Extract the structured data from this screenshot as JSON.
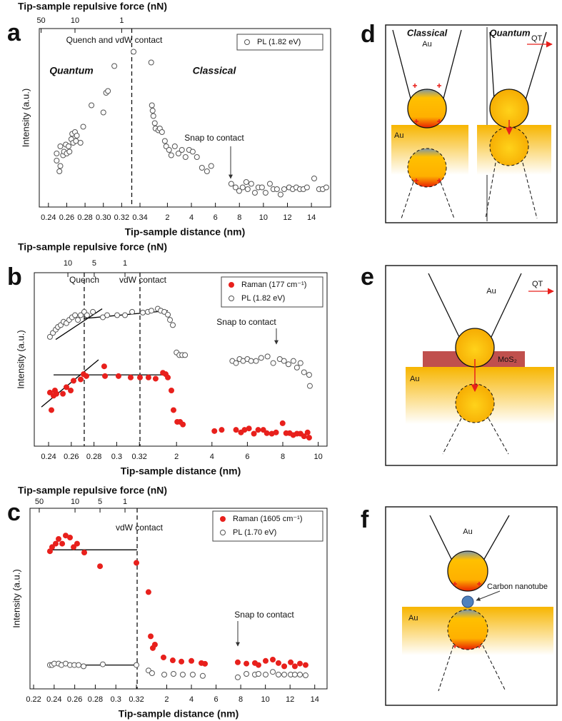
{
  "chart_data": [
    {
      "type": "scatter",
      "panel": "a",
      "top_axis_label": "Tip-sample repulsive force (nN)",
      "top_ticks": [
        50,
        10,
        1
      ],
      "top_tick_x": [
        0.232,
        0.269,
        0.32
      ],
      "xlabel": "Tip-sample distance (nm)",
      "ylabel": "Intensity (a.u.)",
      "xlim": [
        [
          0.23,
          0.347
        ],
        [
          0.25,
          15.6
        ]
      ],
      "xticks": [
        [
          0.24,
          0.26,
          0.28,
          {
            "value": 0.3,
            "label": "0.30"
          },
          0.32,
          0.34
        ],
        [
          2,
          4,
          6,
          8,
          10,
          12,
          14
        ]
      ],
      "ylim": [
        0,
        100
      ],
      "vlines": [
        0.331
      ],
      "annotations": [
        "Quench and vdW contact",
        "Quantum",
        "Classical",
        "Snap to contact"
      ],
      "series": [
        {
          "name": "PL (1.82 eV)",
          "marker": "open",
          "color": "#555555",
          "x": [
            0.249,
            0.249,
            0.252,
            0.253,
            0.253,
            0.256,
            0.257,
            0.259,
            0.26,
            0.262,
            0.263,
            0.265,
            0.266,
            0.267,
            0.269,
            0.27,
            0.271,
            0.275,
            0.278,
            0.287,
            0.3,
            0.303,
            0.305,
            0.312,
            0.333,
            0.65,
            0.71,
            0.77,
            0.83,
            0.95,
            1.01,
            1.25,
            1.37,
            1.55,
            1.79,
            1.9,
            2.14,
            2.32,
            2.62,
            2.92,
            3.21,
            3.51,
            3.81,
            4.11,
            4.46,
            4.88,
            5.3,
            5.65,
            7.32,
            7.68,
            7.98,
            8.27,
            8.57,
            8.69,
            8.99,
            9.29,
            9.58,
            9.88,
            10.18,
            10.54,
            10.83,
            11.13,
            11.43,
            11.73,
            12.14,
            12.44,
            12.74,
            13.04,
            13.33,
            13.63,
            14.23,
            14.64,
            14.94,
            15.24
          ],
          "values": [
            30,
            26,
            20,
            23,
            34,
            29,
            31,
            35,
            30,
            34,
            31,
            38,
            41,
            36,
            42,
            37,
            40,
            36,
            45,
            57,
            53,
            64,
            65,
            79,
            87,
            81,
            57,
            54,
            51,
            47,
            44,
            43,
            44,
            42,
            37,
            34,
            32,
            29,
            34,
            30,
            32,
            28,
            32,
            31,
            28,
            22,
            20,
            23,
            13,
            11,
            9,
            11,
            14,
            10,
            13,
            8,
            11,
            11,
            8,
            13,
            10,
            10,
            7,
            10,
            11,
            10,
            11,
            10,
            10,
            11,
            16,
            10,
            10,
            11
          ]
        }
      ]
    },
    {
      "type": "scatter",
      "panel": "b",
      "top_axis_label": "Tip-sample repulsive force (nN)",
      "top_ticks": [
        10,
        5,
        1
      ],
      "top_tick_x": [
        0.257,
        0.2802,
        0.3073
      ],
      "xlabel": "Tip-sample distance (nm)",
      "ylabel": "Intensity (a.u.)",
      "xlim": [
        [
          0.2274,
          0.3293
        ],
        [
          0.5,
          10.5
        ]
      ],
      "xticks": [
        [
          0.24,
          0.26,
          0.28,
          0.3,
          0.32
        ],
        [
          2,
          4,
          6,
          8,
          10
        ]
      ],
      "ylim": [
        0,
        100
      ],
      "vlines": [
        0.2714,
        0.3205
      ],
      "annotations": [
        "Quench",
        "vdW contact",
        "Snap to contact"
      ],
      "fit_color": "#000000",
      "fit_lines": [
        {
          "x": [
            0.2463,
            0.2872
          ],
          "values": [
            61.5,
            79.2
          ]
        },
        {
          "x": [
            0.2714,
            1.51
          ],
          "values": [
            73.6,
            78.1
          ]
        },
        {
          "x": [
            0.2337,
            0.284
          ],
          "values": [
            22.6,
            49.8
          ]
        },
        {
          "x": [
            0.2444,
            1.51
          ],
          "values": [
            41.1,
            41.1
          ]
        }
      ],
      "series": [
        {
          "name": "Raman (177 cm⁻¹)",
          "marker": "filled",
          "color": "#e8201c",
          "x": [
            0.2412,
            0.2425,
            0.2444,
            0.2456,
            0.2469,
            0.2526,
            0.2557,
            0.2595,
            0.262,
            0.2683,
            0.2708,
            0.2733,
            0.289,
            0.2897,
            0.3016,
            0.3123,
            0.3205,
            0.328,
            0.82,
            1.23,
            1.39,
            1.51,
            1.71,
            1.83,
            2.04,
            2.2,
            2.36,
            4.14,
            4.55,
            5.36,
            5.64,
            5.84,
            6.09,
            6.37,
            6.61,
            6.9,
            7.1,
            7.38,
            7.62,
            7.99,
            8.19,
            8.39,
            8.59,
            8.8,
            9.0,
            9.2,
            9.4,
            9.49
          ],
          "values": [
            30.9,
            20.8,
            29.1,
            32.1,
            30.2,
            30.2,
            34.0,
            32.1,
            37.7,
            38.5,
            41.5,
            40.4,
            46.0,
            40.4,
            40.4,
            39.6,
            39.6,
            39.6,
            38.9,
            42.3,
            41.5,
            39.6,
            32.1,
            20.8,
            14.0,
            14.0,
            12.5,
            8.7,
            9.4,
            9.4,
            7.9,
            9.4,
            10.2,
            7.2,
            9.4,
            9.4,
            7.5,
            7.2,
            7.9,
            13.2,
            7.5,
            7.5,
            6.4,
            7.2,
            7.2,
            5.7,
            7.9,
            4.9
          ]
        },
        {
          "name": "PL (1.82 eV)",
          "marker": "open",
          "color": "#555555",
          "x": [
            0.2412,
            0.2438,
            0.2463,
            0.2482,
            0.2507,
            0.2532,
            0.2557,
            0.2582,
            0.2607,
            0.2633,
            0.2658,
            0.2683,
            0.2714,
            0.2739,
            0.279,
            0.2878,
            0.2916,
            0.3004,
            0.3073,
            0.3136,
            0.323,
            0.3274,
            0.58,
            0.94,
            1.11,
            1.31,
            1.51,
            1.63,
            1.79,
            2.0,
            2.16,
            2.32,
            2.48,
            5.15,
            5.36,
            5.56,
            5.76,
            6.0,
            6.21,
            6.49,
            6.78,
            7.14,
            7.46,
            7.83,
            8.07,
            8.32,
            8.6,
            8.8,
            9.0,
            9.2,
            9.49,
            9.53
          ],
          "values": [
            63.0,
            65.3,
            67.2,
            68.7,
            69.8,
            71.7,
            70.9,
            72.8,
            74.3,
            75.5,
            72.8,
            75.5,
            77.4,
            75.5,
            77.4,
            74.3,
            75.5,
            75.5,
            75.5,
            77.4,
            77.0,
            77.4,
            78.1,
            79.2,
            78.1,
            77.4,
            75.8,
            72.8,
            69.8,
            54.0,
            52.5,
            52.5,
            52.5,
            49.1,
            47.9,
            50.2,
            49.1,
            50.2,
            49.1,
            49.1,
            50.9,
            51.7,
            47.9,
            50.2,
            49.1,
            47.2,
            49.1,
            45.3,
            47.9,
            42.6,
            41.1,
            34.7
          ]
        }
      ]
    },
    {
      "type": "scatter",
      "panel": "c",
      "top_axis_label": "Tip-sample repulsive force (nN)",
      "top_ticks": [
        50,
        10,
        5,
        1
      ],
      "top_tick_x": [
        0.2255,
        0.2603,
        0.2846,
        0.3089
      ],
      "xlabel": "Tip-sample distance (nm)",
      "ylabel": "Intensity (a.u.)",
      "xlim": [
        [
          0.2165,
          0.3297
        ],
        [
          0.35,
          15
        ]
      ],
      "xticks": [
        [
          0.22,
          0.24,
          0.26,
          0.28,
          0.3,
          0.32
        ],
        [
          2,
          4,
          6,
          8,
          10,
          12,
          14
        ]
      ],
      "ylim": [
        0,
        100
      ],
      "vlines": [
        0.3207
      ],
      "annotations": [
        "vdW contact",
        "Snap to contact"
      ],
      "fit_color": "#000000",
      "fit_lines": [
        {
          "x": [
            0.2346,
            0.3207
          ],
          "values": [
            77,
            77
          ]
        },
        {
          "x": [
            0.2346,
            0.3207
          ],
          "values": [
            13.2,
            13.2
          ]
        }
      ],
      "series": [
        {
          "name": "Raman (1605 cm⁻¹)",
          "marker": "filled",
          "color": "#e8201c",
          "x": [
            0.2359,
            0.238,
            0.2415,
            0.2443,
            0.2478,
            0.2512,
            0.2554,
            0.2589,
            0.2623,
            0.2693,
            0.2846,
            0.32,
            0.52,
            0.7,
            0.87,
            1.04,
            1.74,
            2.49,
            3.19,
            4.0,
            4.81,
            5.1,
            7.76,
            8.46,
            9.15,
            9.44,
            10.02,
            10.6,
            11.06,
            11.53,
            12.05,
            12.39,
            12.8,
            13.26
          ],
          "values": [
            76.2,
            78.5,
            80.4,
            83.0,
            80.4,
            84.9,
            83.8,
            78.5,
            80.4,
            75.5,
            67.9,
            69.8,
            53.6,
            29.1,
            22.6,
            24.5,
            17.4,
            15.8,
            15.1,
            15.5,
            14.3,
            13.9,
            14.7,
            14.0,
            14.3,
            13.2,
            15.5,
            16.2,
            14.3,
            12.5,
            14.7,
            12.5,
            14.0,
            13.2
          ]
        },
        {
          "name": "PL (1.70 eV)",
          "marker": "open",
          "color": "#555555",
          "x": [
            0.2359,
            0.238,
            0.2401,
            0.2443,
            0.2471,
            0.2512,
            0.2554,
            0.2596,
            0.2637,
            0.2686,
            0.2873,
            0.32,
            0.52,
            0.81,
            1.8,
            2.55,
            3.3,
            4.11,
            4.92,
            7.76,
            8.46,
            9.15,
            9.44,
            10.02,
            10.6,
            11.06,
            11.53,
            12.05,
            12.39,
            12.8,
            13.26
          ],
          "values": [
            13.2,
            13.2,
            14.0,
            14.0,
            13.2,
            14.0,
            13.2,
            13.2,
            13.2,
            12.5,
            13.6,
            13.2,
            10.2,
            8.7,
            7.9,
            8.3,
            7.9,
            7.9,
            7.2,
            6.4,
            8.3,
            7.9,
            8.3,
            7.9,
            9.4,
            7.9,
            7.9,
            7.9,
            7.9,
            7.9,
            7.5
          ]
        }
      ]
    }
  ],
  "diagrams": [
    {
      "label": "d",
      "texts": [
        "Classical",
        "Quantum",
        "Au",
        "QT",
        "Au"
      ]
    },
    {
      "label": "e",
      "texts": [
        "Au",
        "QT",
        "MoS₂",
        "Au"
      ]
    },
    {
      "label": "f",
      "texts": [
        "Au",
        "Carbon nanotube",
        "Au"
      ]
    }
  ]
}
